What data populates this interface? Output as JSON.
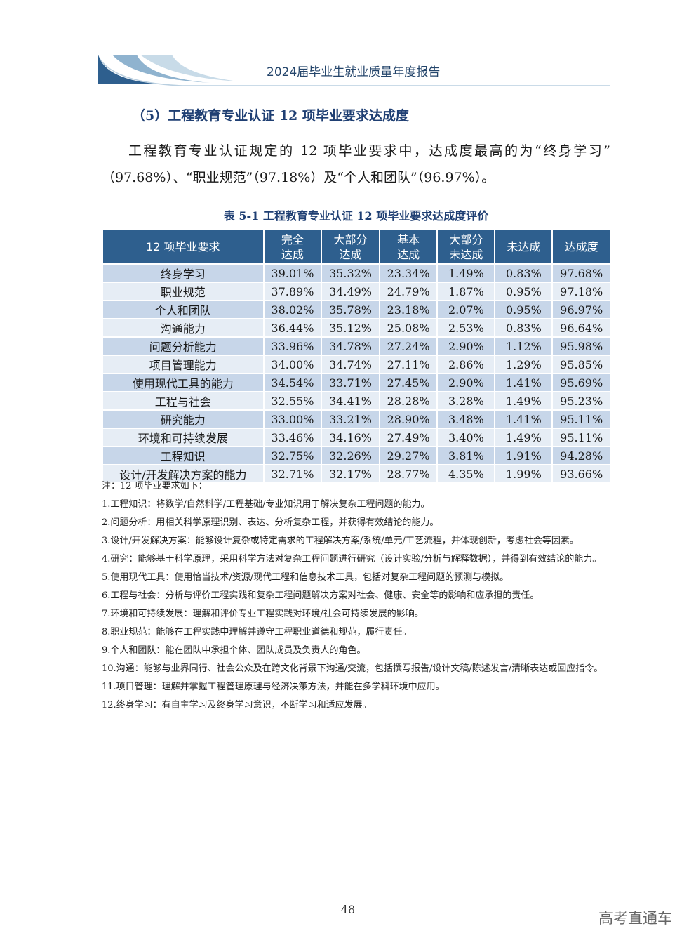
{
  "header": {
    "title": "2024届毕业生就业质量年度报告"
  },
  "section": {
    "heading": "（5）工程教育专业认证 12 项毕业要求达成度",
    "paragraph": "工程教育专业认证规定的 12 项毕业要求中，达成度最高的为“终身学习”（97.68%）、“职业规范”（97.18%）及“个人和团队”（96.97%）。"
  },
  "table": {
    "caption": "表 5-1 工程教育专业认证 12 项毕业要求达成度评价",
    "header": [
      "12 项毕业要求",
      "完全\n达成",
      "大部分\n达成",
      "基本\n达成",
      "大部分\n未达成",
      "未达成",
      "达成度"
    ],
    "rows": [
      [
        "终身学习",
        "39.01%",
        "35.32%",
        "23.34%",
        "1.49%",
        "0.83%",
        "97.68%"
      ],
      [
        "职业规范",
        "37.89%",
        "34.49%",
        "24.79%",
        "1.87%",
        "0.95%",
        "97.18%"
      ],
      [
        "个人和团队",
        "38.02%",
        "35.78%",
        "23.18%",
        "2.07%",
        "0.95%",
        "96.97%"
      ],
      [
        "沟通能力",
        "36.44%",
        "35.12%",
        "25.08%",
        "2.53%",
        "0.83%",
        "96.64%"
      ],
      [
        "问题分析能力",
        "33.96%",
        "34.78%",
        "27.24%",
        "2.90%",
        "1.12%",
        "95.98%"
      ],
      [
        "项目管理能力",
        "34.00%",
        "34.74%",
        "27.11%",
        "2.86%",
        "1.29%",
        "95.85%"
      ],
      [
        "使用现代工具的能力",
        "34.54%",
        "33.71%",
        "27.45%",
        "2.90%",
        "1.41%",
        "95.69%"
      ],
      [
        "工程与社会",
        "32.55%",
        "34.41%",
        "28.28%",
        "3.28%",
        "1.49%",
        "95.23%"
      ],
      [
        "研究能力",
        "33.00%",
        "33.21%",
        "28.90%",
        "3.48%",
        "1.41%",
        "95.11%"
      ],
      [
        "环境和可持续发展",
        "33.46%",
        "34.16%",
        "27.49%",
        "3.40%",
        "1.49%",
        "95.11%"
      ],
      [
        "工程知识",
        "32.75%",
        "32.26%",
        "29.27%",
        "3.81%",
        "1.91%",
        "94.28%"
      ],
      [
        "设计/开发解决方案的能力",
        "32.71%",
        "32.17%",
        "28.77%",
        "4.35%",
        "1.99%",
        "93.66%"
      ]
    ]
  },
  "notes": {
    "title": "注：12 项毕业要求如下：",
    "items": [
      "1.工程知识：将数学/自然科学/工程基础/专业知识用于解决复杂工程问题的能力。",
      "2.问题分析：用相关科学原理识别、表达、分析复杂工程，并获得有效结论的能力。",
      "3.设计/开发解决方案：能够设计复杂或特定需求的工程解决方案/系统/单元/工艺流程，并体现创新，考虑社会等因素。",
      "4.研究：能够基于科学原理，采用科学方法对复杂工程问题进行研究（设计实验/分析与解释数据），并得到有效结论的能力。",
      "5.使用现代工具：使用恰当技术/资源/现代工程和信息技术工具，包括对复杂工程问题的预测与模拟。",
      "6.工程与社会：分析与评价工程实践和复杂工程问题解决方案对社会、健康、安全等的影响和应承担的责任。",
      "7.环境和可持续发展：理解和评价专业工程实践对环境/社会可持续发展的影响。",
      "8.职业规范：能够在工程实践中理解并遵守工程职业道德和规范，履行责任。",
      "9.个人和团队：能在团队中承担个体、团队成员及负责人的角色。",
      "10.沟通：能够与业界同行、社会公众及在跨文化背景下沟通/交流，包括撰写报告/设计文稿/陈述发言/清晰表达或回应指令。",
      "11.项目管理：理解并掌握工程管理原理与经济决策方法，并能在多学科环境中应用。",
      "12.终身学习：有自主学习及终身学习意识，不断学习和适应发展。"
    ]
  },
  "footer": {
    "page": "48",
    "watermark": "高考直通车"
  }
}
